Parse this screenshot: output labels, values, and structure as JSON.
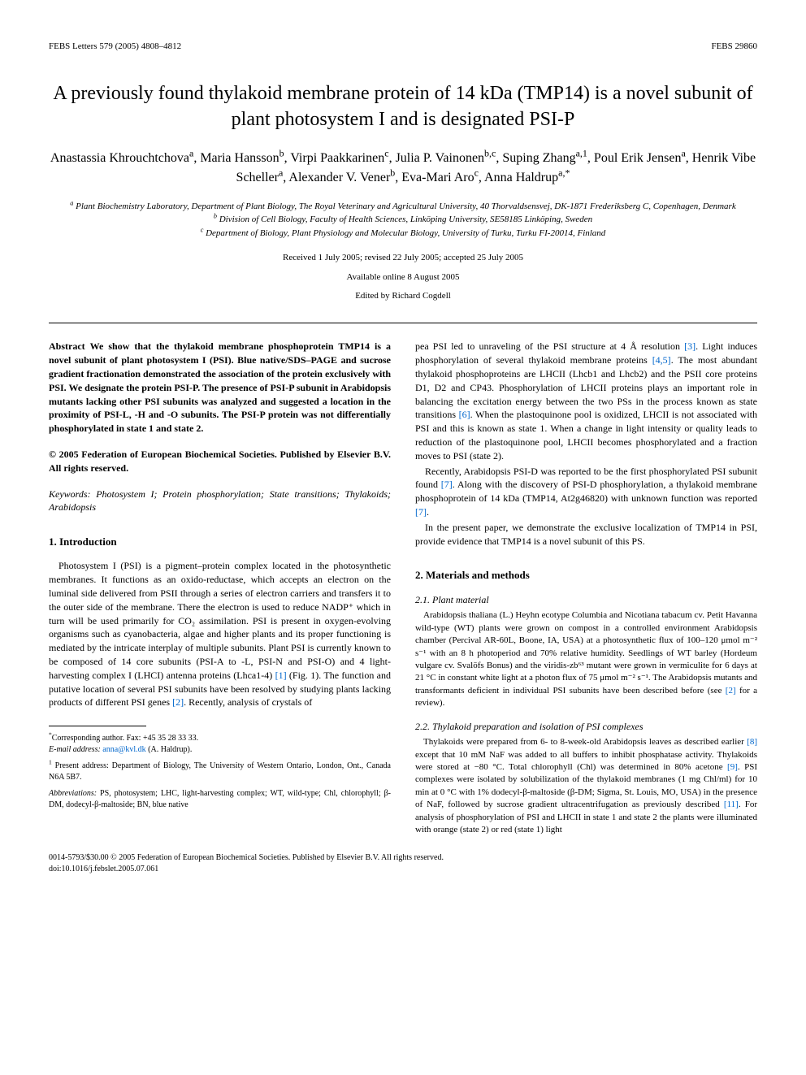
{
  "header": {
    "left": "FEBS Letters 579 (2005) 4808–4812",
    "right": "FEBS 29860"
  },
  "title": "A previously found thylakoid membrane protein of 14 kDa (TMP14) is a novel subunit of plant photosystem I and is designated PSI-P",
  "authors_line1": "Anastassia Khrouchtchova",
  "authors_sup1": "a",
  "authors_line2": ", Maria Hansson",
  "authors_sup2": "b",
  "authors_line3": ", Virpi Paakkarinen",
  "authors_sup3": "c",
  "authors_line4": ", Julia P. Vainonen",
  "authors_sup4": "b,c",
  "authors_line5": ", Suping Zhang",
  "authors_sup5": "a,1",
  "authors_line6": ", Poul Erik Jensen",
  "authors_sup6": "a",
  "authors_line7": ", Henrik Vibe Scheller",
  "authors_sup7": "a",
  "authors_line8": ", Alexander V. Vener",
  "authors_sup8": "b",
  "authors_line9": ", Eva-Mari Aro",
  "authors_sup9": "c",
  "authors_line10": ", Anna Haldrup",
  "authors_sup10": "a,*",
  "affiliations": {
    "a": "Plant Biochemistry Laboratory, Department of Plant Biology, The Royal Veterinary and Agricultural University, 40 Thorvaldsensvej, DK-1871 Frederiksberg C, Copenhagen, Denmark",
    "b": "Division of Cell Biology, Faculty of Health Sciences, Linköping University, SE58185 Linköping, Sweden",
    "c": "Department of Biology, Plant Physiology and Molecular Biology, University of Turku, Turku FI-20014, Finland"
  },
  "dates": "Received 1 July 2005; revised 22 July 2005; accepted 25 July 2005",
  "available": "Available online 8 August 2005",
  "edited": "Edited by Richard Cogdell",
  "abstract": {
    "label": "Abstract",
    "text": "We show that the thylakoid membrane phosphoprotein TMP14 is a novel subunit of plant photosystem I (PSI). Blue native/SDS–PAGE and sucrose gradient fractionation demonstrated the association of the protein exclusively with PSI. We designate the protein PSI-P. The presence of PSI-P subunit in Arabidopsis mutants lacking other PSI subunits was analyzed and suggested a location in the proximity of PSI-L, -H and -O subunits. The PSI-P protein was not differentially phosphorylated in state 1 and state 2."
  },
  "copyright": "© 2005 Federation of European Biochemical Societies. Published by Elsevier B.V. All rights reserved.",
  "keywords": {
    "label": "Keywords:",
    "text": "Photosystem I; Protein phosphorylation; State transitions; Thylakoids; Arabidopsis"
  },
  "sections": {
    "intro_heading": "1. Introduction",
    "intro_p1": "Photosystem I (PSI) is a pigment–protein complex located in the photosynthetic membranes. It functions as an oxido-reductase, which accepts an electron on the luminal side delivered from PSII through a series of electron carriers and transfers it to the outer side of the membrane. There the electron is used to reduce NADP⁺ which in turn will be used primarily for CO₂ assimilation. PSI is present in oxygen-evolving organisms such as cyanobacteria, algae and higher plants and its proper functioning is mediated by the intricate interplay of multiple subunits. Plant PSI is currently known to be composed of 14 core subunits (PSI-A to -L, PSI-N and PSI-O) and 4 light-harvesting complex I (LHCI) antenna proteins (Lhca1-4) ",
    "intro_p1_ref1": "[1]",
    "intro_p1_cont": " (Fig. 1). The function and putative location of several PSI subunits have been resolved by studying plants lacking products of different PSI genes ",
    "intro_p1_ref2": "[2]",
    "intro_p1_end": ". Recently, analysis of crystals of",
    "intro_p2_start": "pea PSI led to unraveling of the PSI structure at 4 Å resolution ",
    "intro_p2_ref3": "[3]",
    "intro_p2_cont1": ". Light induces phosphorylation of several thylakoid membrane proteins ",
    "intro_p2_ref45": "[4,5]",
    "intro_p2_cont2": ". The most abundant thylakoid phosphoproteins are LHCII (Lhcb1 and Lhcb2) and the PSII core proteins D1, D2 and CP43. Phosphorylation of LHCII proteins plays an important role in balancing the excitation energy between the two PSs in the process known as state transitions ",
    "intro_p2_ref6": "[6]",
    "intro_p2_cont3": ". When the plastoquinone pool is oxidized, LHCII is not associated with PSI and this is known as state 1. When a change in light intensity or quality leads to reduction of the plastoquinone pool, LHCII becomes phosphorylated and a fraction moves to PSI (state 2).",
    "intro_p3_start": "Recently, Arabidopsis PSI-D was reported to be the first phosphorylated PSI subunit found ",
    "intro_p3_ref7": "[7]",
    "intro_p3_cont": ". Along with the discovery of PSI-D phosphorylation, a thylakoid membrane phosphoprotein of 14 kDa (TMP14, At2g46820) with unknown function was reported ",
    "intro_p3_ref7b": "[7]",
    "intro_p3_end": ".",
    "intro_p4": "In the present paper, we demonstrate the exclusive localization of TMP14 in PSI, provide evidence that TMP14 is a novel subunit of this PS.",
    "methods_heading": "2. Materials and methods",
    "methods_21_heading": "2.1. Plant material",
    "methods_21_text": "Arabidopsis thaliana (L.) Heyhn ecotype Columbia and Nicotiana tabacum cv. Petit Havanna wild-type (WT) plants were grown on compost in a controlled environment Arabidopsis chamber (Percival AR-60L, Boone, IA, USA) at a photosynthetic flux of 100–120 μmol m⁻² s⁻¹ with an 8 h photoperiod and 70% relative humidity. Seedlings of WT barley (Hordeum vulgare cv. Svalöfs Bonus) and the viridis-zb⁶³ mutant were grown in vermiculite for 6 days at 21 °C in constant white light at a photon flux of 75 μmol m⁻² s⁻¹. The Arabidopsis mutants and transformants deficient in individual PSI subunits have been described before (see ",
    "methods_21_ref2": "[2]",
    "methods_21_end": " for a review).",
    "methods_22_heading": "2.2. Thylakoid preparation and isolation of PSI complexes",
    "methods_22_text": "Thylakoids were prepared from 6- to 8-week-old Arabidopsis leaves as described earlier ",
    "methods_22_ref8": "[8]",
    "methods_22_cont1": " except that 10 mM NaF was added to all buffers to inhibit phosphatase activity. Thylakoids were stored at −80 °C. Total chlorophyll (Chl) was determined in 80% acetone ",
    "methods_22_ref9": "[9]",
    "methods_22_cont2": ". PSI complexes were isolated by solubilization of the thylakoid membranes (1 mg Chl/ml) for 10 min at 0 °C with 1% dodecyl-β-maltoside (β-DM; Sigma, St. Louis, MO, USA) in the presence of NaF, followed by sucrose gradient ultracentrifugation as previously described ",
    "methods_22_ref11": "[11]",
    "methods_22_cont3": ". For analysis of phosphorylation of PSI and LHCII in state 1 and state 2 the plants were illuminated with orange (state 2) or red (state 1) light"
  },
  "footnotes": {
    "corresponding": "Corresponding author. Fax: +45 35 28 33 33.",
    "email_label": "E-mail address:",
    "email": "anna@kvl.dk",
    "email_name": " (A. Haldrup).",
    "present_address": "Present address: Department of Biology, The University of Western Ontario, London, Ont., Canada N6A 5B7.",
    "abbreviations_label": "Abbreviations:",
    "abbreviations": " PS, photosystem; LHC, light-harvesting complex; WT, wild-type; Chl, chlorophyll; β-DM, dodecyl-β-maltoside; BN, blue native"
  },
  "footer": {
    "line1": "0014-5793/$30.00 © 2005 Federation of European Biochemical Societies. Published by Elsevier B.V. All rights reserved.",
    "line2": "doi:10.1016/j.febslet.2005.07.061"
  },
  "colors": {
    "text": "#000000",
    "link": "#0066cc",
    "background": "#ffffff"
  },
  "typography": {
    "body_font": "Georgia, Times New Roman, serif",
    "title_size": 24,
    "author_size": 16,
    "body_size": 12,
    "footnote_size": 10
  }
}
